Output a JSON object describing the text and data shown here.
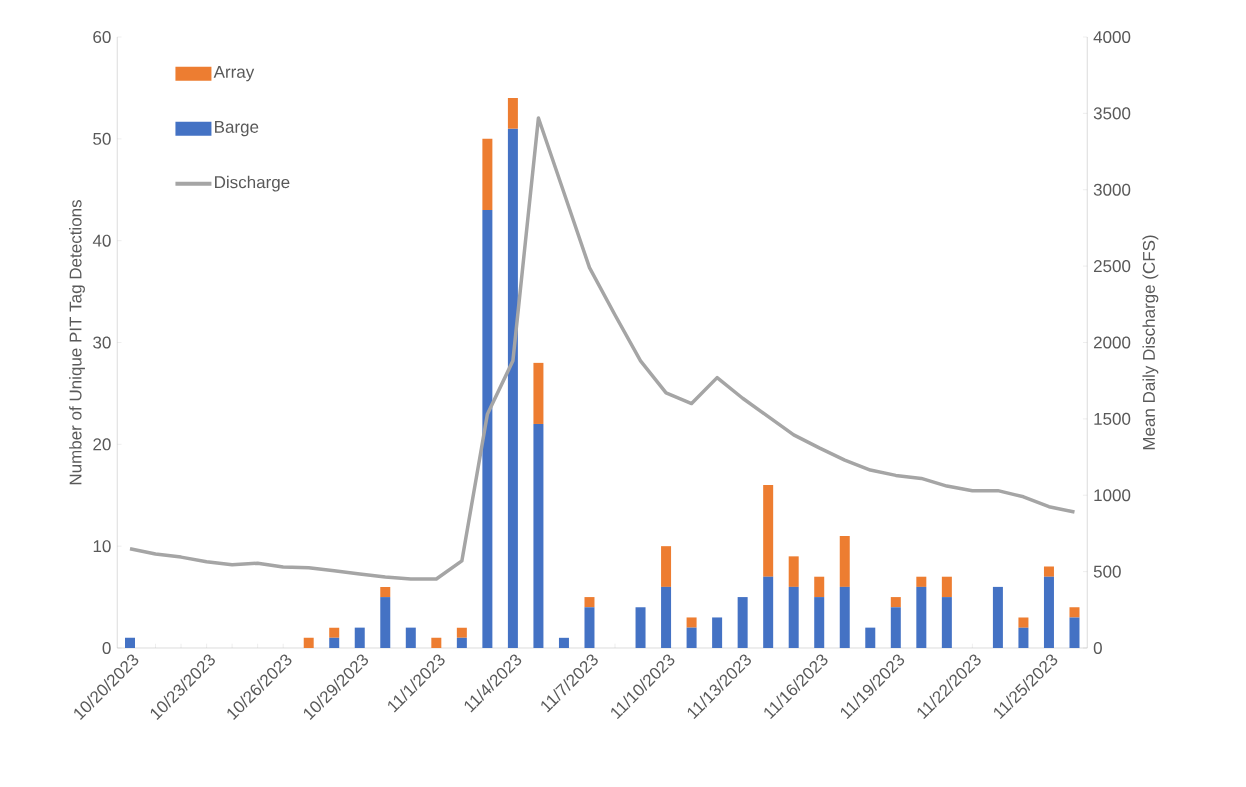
{
  "chart_data": {
    "type": "bar",
    "stacked": true,
    "ylabel": "Number of Unique PIT Tag Detections",
    "y2label": "Mean Daily Discharge (CFS)",
    "categories": [
      "10/20/2023",
      null,
      null,
      "10/23/2023",
      null,
      null,
      "10/26/2023",
      null,
      null,
      "10/29/2023",
      null,
      null,
      "11/1/2023",
      null,
      null,
      "11/4/2023",
      null,
      null,
      "11/7/2023",
      null,
      null,
      "11/10/2023",
      null,
      null,
      "11/13/2023",
      null,
      null,
      "11/16/2023",
      null,
      null,
      "11/19/2023",
      null,
      null,
      "11/22/2023",
      null,
      null,
      "11/25/2023",
      null
    ],
    "series": [
      {
        "name": "Barge",
        "type": "bar",
        "color": "#4472c4",
        "values": [
          1,
          0,
          0,
          0,
          0,
          0,
          0,
          0,
          1,
          2,
          5,
          2,
          0,
          1,
          43,
          51,
          22,
          1,
          4,
          0,
          4,
          6,
          2,
          3,
          5,
          7,
          6,
          5,
          6,
          2,
          4,
          6,
          5,
          0,
          6,
          2,
          7,
          3
        ]
      },
      {
        "name": "Array",
        "type": "bar",
        "color": "#ed7d31",
        "values": [
          0,
          0,
          0,
          0,
          0,
          0,
          0,
          1,
          1,
          0,
          1,
          0,
          1,
          1,
          7,
          3,
          6,
          0,
          1,
          0,
          0,
          4,
          1,
          0,
          0,
          9,
          3,
          2,
          5,
          0,
          1,
          1,
          2,
          0,
          0,
          1,
          1,
          1
        ]
      },
      {
        "name": "Discharge",
        "type": "line",
        "axis": "y2",
        "color": "#a5a5a5",
        "values": [
          650,
          615,
          595,
          565,
          545,
          555,
          530,
          525,
          505,
          485,
          465,
          452,
          452,
          570,
          1530,
          1880,
          3470,
          2980,
          2490,
          2180,
          1880,
          1670,
          1600,
          1770,
          1635,
          1515,
          1395,
          1310,
          1230,
          1165,
          1130,
          1110,
          1060,
          1030,
          1030,
          990,
          925,
          890
        ]
      }
    ],
    "ylim": [
      0,
      60
    ],
    "yticks": [
      0,
      10,
      20,
      30,
      40,
      50,
      60
    ],
    "y2lim": [
      0,
      4000
    ],
    "y2ticks": [
      0,
      500,
      1000,
      1500,
      2000,
      2500,
      3000,
      3500,
      4000
    ],
    "legend": "top left",
    "grid": false
  }
}
